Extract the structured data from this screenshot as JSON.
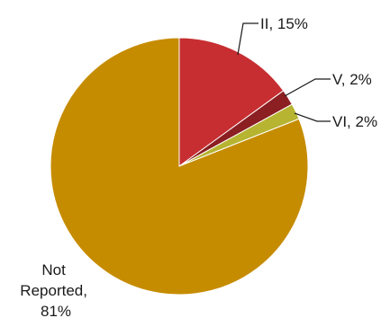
{
  "chart_data": {
    "type": "pie",
    "title": "",
    "slices": [
      {
        "label": "II",
        "value": 15,
        "data_label": "II, 15%",
        "color": "#c72e31"
      },
      {
        "label": "V",
        "value": 2,
        "data_label": "V, 2%",
        "color": "#8b1f22"
      },
      {
        "label": "VI",
        "value": 2,
        "data_label": "VI, 2%",
        "color": "#b6b431"
      },
      {
        "label": "Not Reported",
        "value": 81,
        "data_label_lines": [
          "Not",
          "Reported,",
          "81%"
        ],
        "color": "#c68c00"
      }
    ],
    "legend": "none",
    "start_angle": "12 o'clock",
    "direction": "clockwise"
  }
}
